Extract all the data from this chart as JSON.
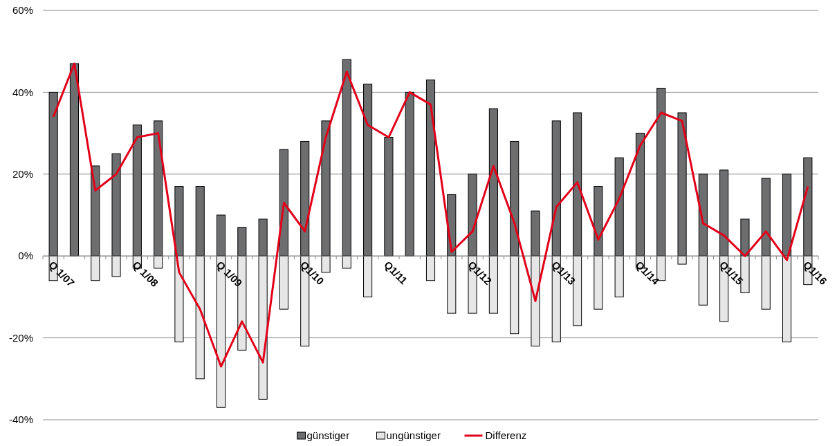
{
  "chart_data": {
    "type": "bar",
    "stacked": true,
    "categories": [
      "Q 1/07",
      null,
      null,
      null,
      "Q 1/08",
      null,
      null,
      null,
      "Q 1/09",
      null,
      null,
      null,
      "Q1/10",
      null,
      null,
      null,
      "Q1/11",
      null,
      null,
      null,
      "Q1/12",
      null,
      null,
      null,
      "Q1/13",
      null,
      null,
      null,
      "Q1/14",
      null,
      null,
      null,
      "Q1/15",
      null,
      null,
      null,
      "Q1/16"
    ],
    "series": [
      {
        "name": "günstiger",
        "color": "#6d6e70",
        "values": [
          40,
          47,
          22,
          25,
          32,
          33,
          17,
          17,
          10,
          7,
          9,
          26,
          28,
          33,
          48,
          42,
          29,
          40,
          43,
          15,
          20,
          36,
          28,
          11,
          33,
          35,
          17,
          24,
          30,
          41,
          35,
          20,
          21,
          9,
          19,
          20,
          24
        ]
      },
      {
        "name": "ungünstiger",
        "color": "#e6e6e6",
        "values": [
          -6,
          0,
          -6,
          -5,
          -3,
          -3,
          -21,
          -30,
          -37,
          -23,
          -35,
          -13,
          -22,
          -4,
          -3,
          -10,
          0,
          0,
          -6,
          -14,
          -14,
          -14,
          -19,
          -22,
          -21,
          -17,
          -13,
          -10,
          -3,
          -6,
          -2,
          -12,
          -16,
          -9,
          -13,
          -21,
          -7
        ]
      },
      {
        "name": "Differenz",
        "type": "line",
        "color": "#e2001a",
        "values": [
          34,
          47,
          16,
          20,
          29,
          30,
          -4,
          -13,
          -27,
          -16,
          -26,
          13,
          6,
          29,
          45,
          32,
          29,
          40,
          37,
          1,
          6,
          22,
          8,
          -11,
          12,
          18,
          4,
          14,
          27,
          35,
          33,
          8,
          5,
          0,
          6,
          -1,
          17
        ]
      }
    ],
    "ylim": [
      -40,
      60
    ],
    "yticks": [
      {
        "value": -40,
        "label": "-40%"
      },
      {
        "value": -20,
        "label": "-20%"
      },
      {
        "value": 0,
        "label": "0%"
      },
      {
        "value": 20,
        "label": "20%"
      },
      {
        "value": 40,
        "label": "40%"
      },
      {
        "value": 60,
        "label": "60%"
      }
    ],
    "grid": "y",
    "legend": "bottom",
    "marker": "none",
    "line_style": "solid"
  }
}
